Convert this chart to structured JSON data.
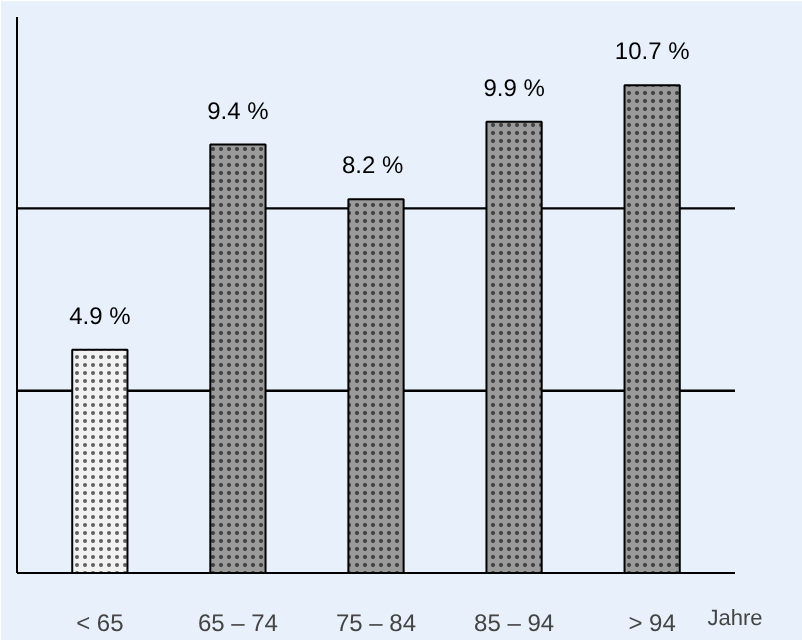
{
  "chart_data": {
    "type": "bar",
    "xlabel": "Jahre",
    "categories": [
      "< 65",
      "65 – 74",
      "75 – 84",
      "85 – 94",
      "> 94"
    ],
    "values": [
      4.9,
      9.4,
      8.2,
      9.9,
      10.7
    ],
    "value_labels": [
      "4.9 %",
      "9.4 %",
      "8.2  %",
      "9.9 %",
      "10.7 %"
    ],
    "colors": [
      "#f2f2f2",
      "#9a9a9a",
      "#9a9a9a",
      "#9a9a9a",
      "#9a9a9a"
    ],
    "ylim": [
      0,
      12.2
    ],
    "ref_lines": [
      {
        "axis": "y",
        "value": 4
      },
      {
        "axis": "y",
        "value": 8
      }
    ],
    "tick_labels": "x"
  }
}
